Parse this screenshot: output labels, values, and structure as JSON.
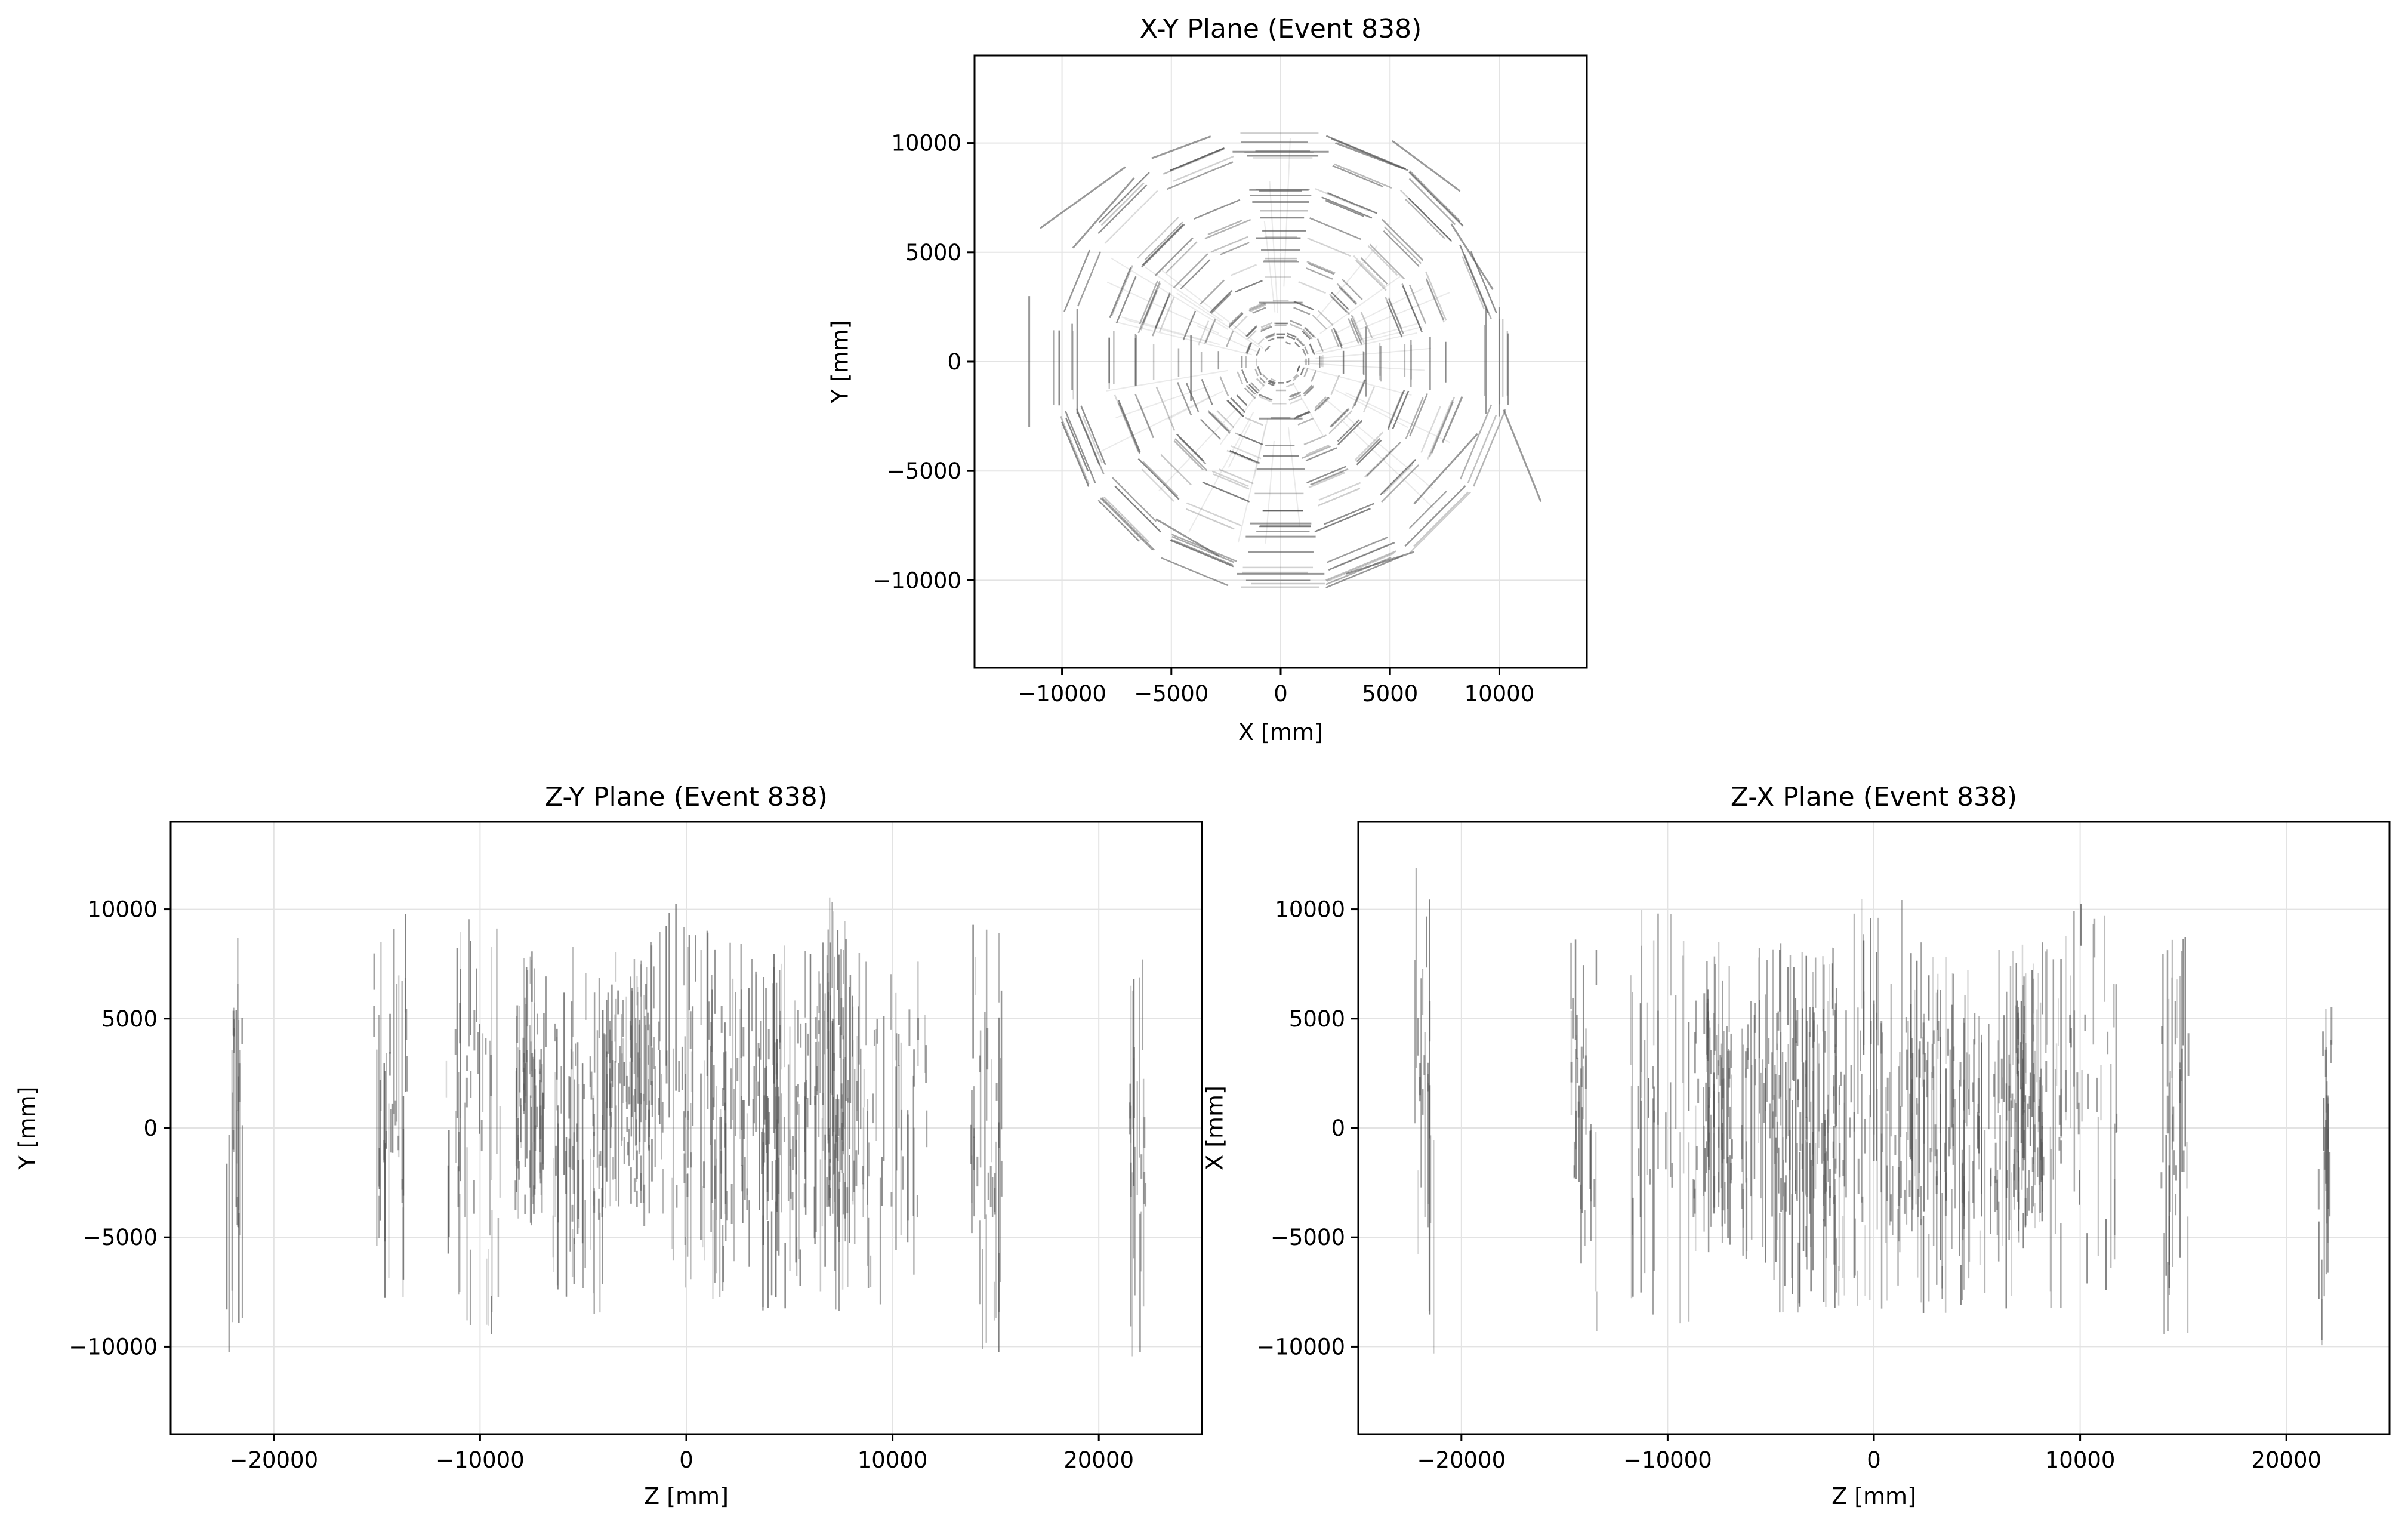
{
  "chart_data": [
    {
      "id": "xy",
      "type": "scatter",
      "title": "X-Y Plane (Event 838)",
      "xlabel": "X [mm]",
      "ylabel": "Y [mm]",
      "xlim": [
        -14000,
        14000
      ],
      "ylim": [
        -14000,
        14000
      ],
      "xticks": [
        -10000,
        -5000,
        0,
        5000,
        10000
      ],
      "yticks": [
        -10000,
        -5000,
        0,
        5000,
        10000
      ],
      "xtick_labels": [
        "−10000",
        "−5000",
        "0",
        "5000",
        "10000"
      ],
      "ytick_labels": [
        "−10000",
        "−5000",
        "0",
        "5000",
        "10000"
      ],
      "grid": true,
      "series": [
        {
          "segment_color": "#555555",
          "ring_radii": [
            1100,
            1800,
            2800,
            3800,
            4600,
            5900,
            6800,
            7900,
            9600,
            10400
          ],
          "ring_sides": 16,
          "segments": [
            {
              "x1": -1400,
              "y1": 7600,
              "x2": 1400,
              "y2": 7600
            },
            {
              "x1": -1300,
              "y1": 7300,
              "x2": 1300,
              "y2": 7300
            },
            {
              "x1": -1400,
              "y1": -7400,
              "x2": 1400,
              "y2": -7400
            },
            {
              "x1": -1600,
              "y1": -8000,
              "x2": 1600,
              "y2": -8000
            },
            {
              "x1": -1500,
              "y1": -8700,
              "x2": 1500,
              "y2": -8700
            },
            {
              "x1": -2000,
              "y1": -9700,
              "x2": 2000,
              "y2": -9700
            },
            {
              "x1": -2200,
              "y1": 9600,
              "x2": 2200,
              "y2": 9600
            },
            {
              "x1": -9300,
              "y1": 2400,
              "x2": -9300,
              "y2": -2400
            },
            {
              "x1": -11500,
              "y1": 3000,
              "x2": -11500,
              "y2": -3000
            },
            {
              "x1": 9400,
              "y1": 2400,
              "x2": 9400,
              "y2": -2400
            },
            {
              "x1": 10000,
              "y1": 2500,
              "x2": 10000,
              "y2": -2500
            },
            {
              "x1": -7100,
              "y1": 8900,
              "x2": -11000,
              "y2": 6100
            },
            {
              "x1": -6700,
              "y1": 8400,
              "x2": -9500,
              "y2": 5200
            },
            {
              "x1": 5100,
              "y1": 10100,
              "x2": 8200,
              "y2": 7800
            },
            {
              "x1": 7800,
              "y1": 6300,
              "x2": 9700,
              "y2": 3300
            },
            {
              "x1": 6100,
              "y1": -6500,
              "x2": 9000,
              "y2": -3300
            },
            {
              "x1": 7400,
              "y1": -3700,
              "x2": 8300,
              "y2": -1600
            },
            {
              "x1": 10200,
              "y1": -2200,
              "x2": 11900,
              "y2": -6400
            },
            {
              "x1": -5700,
              "y1": -7200,
              "x2": -2800,
              "y2": -8900
            },
            {
              "x1": 3000,
              "y1": -9700,
              "x2": 6100,
              "y2": -8700
            },
            {
              "x1": -3200,
              "y1": 10300,
              "x2": -5900,
              "y2": 9300
            },
            {
              "x1": 2500,
              "y1": 10000,
              "x2": 5700,
              "y2": 8800
            },
            {
              "x1": -4100,
              "y1": 1200,
              "x2": -4100,
              "y2": -1800
            },
            {
              "x1": 3900,
              "y1": 1600,
              "x2": 3900,
              "y2": -1600
            },
            {
              "x1": -1000,
              "y1": 2700,
              "x2": 1000,
              "y2": 2700
            },
            {
              "x1": -1000,
              "y1": -2600,
              "x2": 1000,
              "y2": -2600
            },
            {
              "x1": -900,
              "y1": 5100,
              "x2": 900,
              "y2": 5100
            },
            {
              "x1": -1100,
              "y1": -4900,
              "x2": 1100,
              "y2": -4900
            }
          ]
        }
      ]
    },
    {
      "id": "zy",
      "type": "scatter",
      "title": "Z-Y Plane (Event 838)",
      "xlabel": "Z [mm]",
      "ylabel": "Y [mm]",
      "xlim": [
        -25000,
        25000
      ],
      "ylim": [
        -14000,
        14000
      ],
      "xticks": [
        -20000,
        -10000,
        0,
        10000,
        20000
      ],
      "yticks": [
        -10000,
        -5000,
        0,
        5000,
        10000
      ],
      "xtick_labels": [
        "−20000",
        "−10000",
        "0",
        "10000",
        "20000"
      ],
      "ytick_labels": [
        "−10000",
        "−5000",
        "0",
        "5000",
        "10000"
      ],
      "grid": true,
      "series": [
        {
          "segment_color": "#555555",
          "clusters": [
            {
              "z_min": -22300,
              "z_max": -21500,
              "y_min": -10400,
              "y_max": 10600,
              "count": 14
            },
            {
              "z_min": -15200,
              "z_max": -13500,
              "y_min": -8200,
              "y_max": 9800,
              "count": 22
            },
            {
              "z_min": -11800,
              "z_max": -9000,
              "y_min": -10600,
              "y_max": 9600,
              "count": 26
            },
            {
              "z_min": -8300,
              "z_max": -6800,
              "y_min": -4500,
              "y_max": 8500,
              "count": 40
            },
            {
              "z_min": -6500,
              "z_max": -4000,
              "y_min": -8500,
              "y_max": 8500,
              "count": 38
            },
            {
              "z_min": -4000,
              "z_max": -1500,
              "y_min": -4200,
              "y_max": 8500,
              "count": 60
            },
            {
              "z_min": -1500,
              "z_max": 1500,
              "y_min": -8500,
              "y_max": 10500,
              "count": 36
            },
            {
              "z_min": 1500,
              "z_max": 4500,
              "y_min": -8500,
              "y_max": 8500,
              "count": 52
            },
            {
              "z_min": 4500,
              "z_max": 6800,
              "y_min": -8500,
              "y_max": 8500,
              "count": 34
            },
            {
              "z_min": 6800,
              "z_max": 8200,
              "y_min": -8500,
              "y_max": 10600,
              "count": 44
            },
            {
              "z_min": 8200,
              "z_max": 11800,
              "y_min": -8500,
              "y_max": 8500,
              "count": 30
            },
            {
              "z_min": 13800,
              "z_max": 15300,
              "y_min": -10900,
              "y_max": 9600,
              "count": 22
            },
            {
              "z_min": 21500,
              "z_max": 22300,
              "y_min": -10600,
              "y_max": 10300,
              "count": 14
            }
          ]
        }
      ]
    },
    {
      "id": "zx",
      "type": "scatter",
      "title": "Z-X Plane (Event 838)",
      "xlabel": "Z [mm]",
      "ylabel": "X [mm]",
      "xlim": [
        -25000,
        25000
      ],
      "ylim": [
        -14000,
        14000
      ],
      "xticks": [
        -20000,
        -10000,
        0,
        10000,
        20000
      ],
      "yticks": [
        -10000,
        -5000,
        0,
        5000,
        10000
      ],
      "xtick_labels": [
        "−20000",
        "−10000",
        "0",
        "10000",
        "20000"
      ],
      "ytick_labels": [
        "−10000",
        "−5000",
        "0",
        "5000",
        "10000"
      ],
      "grid": true,
      "series": [
        {
          "segment_color": "#555555",
          "clusters": [
            {
              "z_min": -22300,
              "z_max": -21300,
              "y_min": -10600,
              "y_max": 12000,
              "count": 14
            },
            {
              "z_min": -14700,
              "z_max": -13400,
              "y_min": -9500,
              "y_max": 9000,
              "count": 20
            },
            {
              "z_min": -11800,
              "z_max": -8500,
              "y_min": -10600,
              "y_max": 10500,
              "count": 26
            },
            {
              "z_min": -8300,
              "z_max": -6800,
              "y_min": -6000,
              "y_max": 8500,
              "count": 40
            },
            {
              "z_min": -6500,
              "z_max": -4000,
              "y_min": -8500,
              "y_max": 8500,
              "count": 38
            },
            {
              "z_min": -4000,
              "z_max": -1500,
              "y_min": -8500,
              "y_max": 8500,
              "count": 58
            },
            {
              "z_min": -1500,
              "z_max": 1500,
              "y_min": -8500,
              "y_max": 10500,
              "count": 34
            },
            {
              "z_min": 1500,
              "z_max": 4500,
              "y_min": -8500,
              "y_max": 8500,
              "count": 56
            },
            {
              "z_min": 4500,
              "z_max": 6800,
              "y_min": -8500,
              "y_max": 8500,
              "count": 32
            },
            {
              "z_min": 6800,
              "z_max": 8200,
              "y_min": -5500,
              "y_max": 8500,
              "count": 44
            },
            {
              "z_min": 8200,
              "z_max": 11800,
              "y_min": -9000,
              "y_max": 10300,
              "count": 30
            },
            {
              "z_min": 13800,
              "z_max": 15300,
              "y_min": -9500,
              "y_max": 9600,
              "count": 22
            },
            {
              "z_min": 21400,
              "z_max": 22200,
              "y_min": -10000,
              "y_max": 6500,
              "count": 14
            }
          ]
        }
      ]
    }
  ]
}
